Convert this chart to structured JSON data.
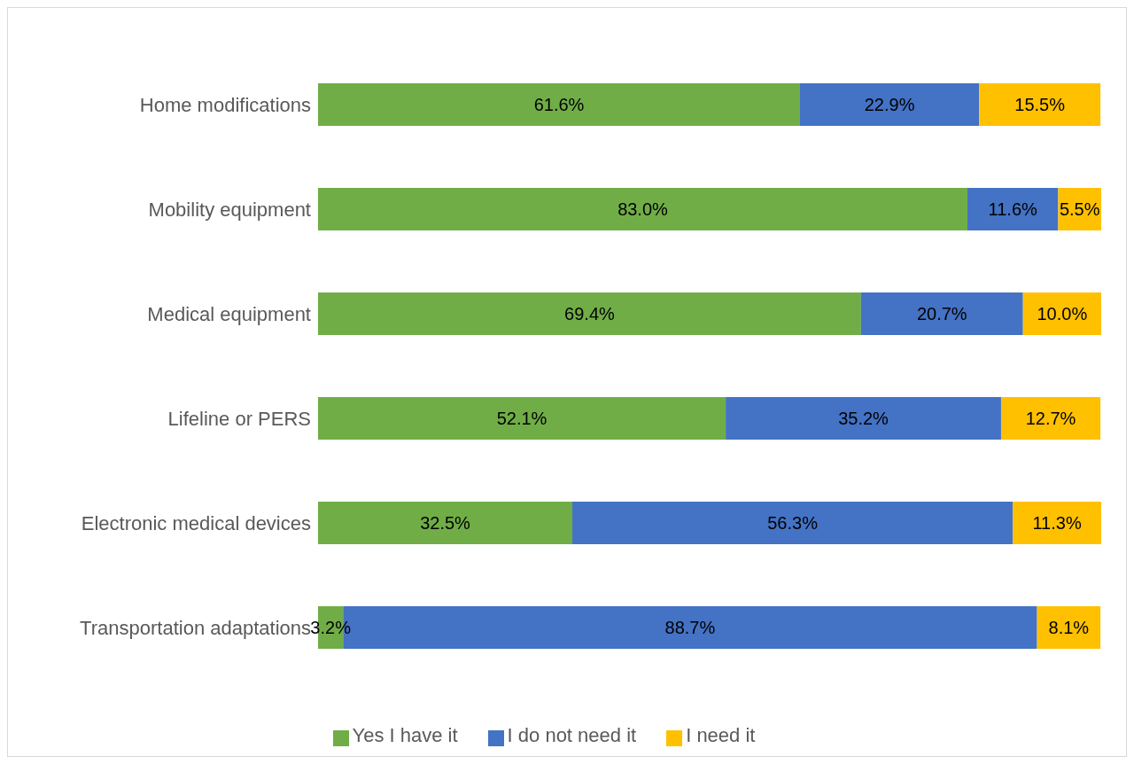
{
  "chart_data": {
    "type": "bar",
    "orientation": "horizontal",
    "stacked": true,
    "legend": "bottom",
    "categories": [
      "Home modifications",
      "Mobility equipment",
      "Medical equipment",
      "Lifeline or PERS",
      "Electronic medical devices",
      "Transportation adaptations"
    ],
    "series": [
      {
        "name": "Yes I have it",
        "color": "#70ad47",
        "values": [
          61.6,
          83.0,
          69.4,
          52.1,
          32.5,
          3.2
        ],
        "value_labels": [
          "61.6%",
          "83.0%",
          "69.4%",
          "52.1%",
          "32.5%",
          "3.2%"
        ]
      },
      {
        "name": "I do not need it",
        "color": "#4472c4",
        "values": [
          22.9,
          11.6,
          20.7,
          35.2,
          56.3,
          88.7
        ],
        "value_labels": [
          "22.9%",
          "11.6%",
          "20.7%",
          "35.2%",
          "56.3%",
          "88.7%"
        ]
      },
      {
        "name": "I need it",
        "color": "#ffc000",
        "values": [
          15.5,
          5.5,
          10.0,
          12.7,
          11.3,
          8.1
        ],
        "value_labels": [
          "15.5%",
          "5.5%",
          "10.0%",
          "12.7%",
          "11.3%",
          "8.1%"
        ]
      }
    ]
  }
}
